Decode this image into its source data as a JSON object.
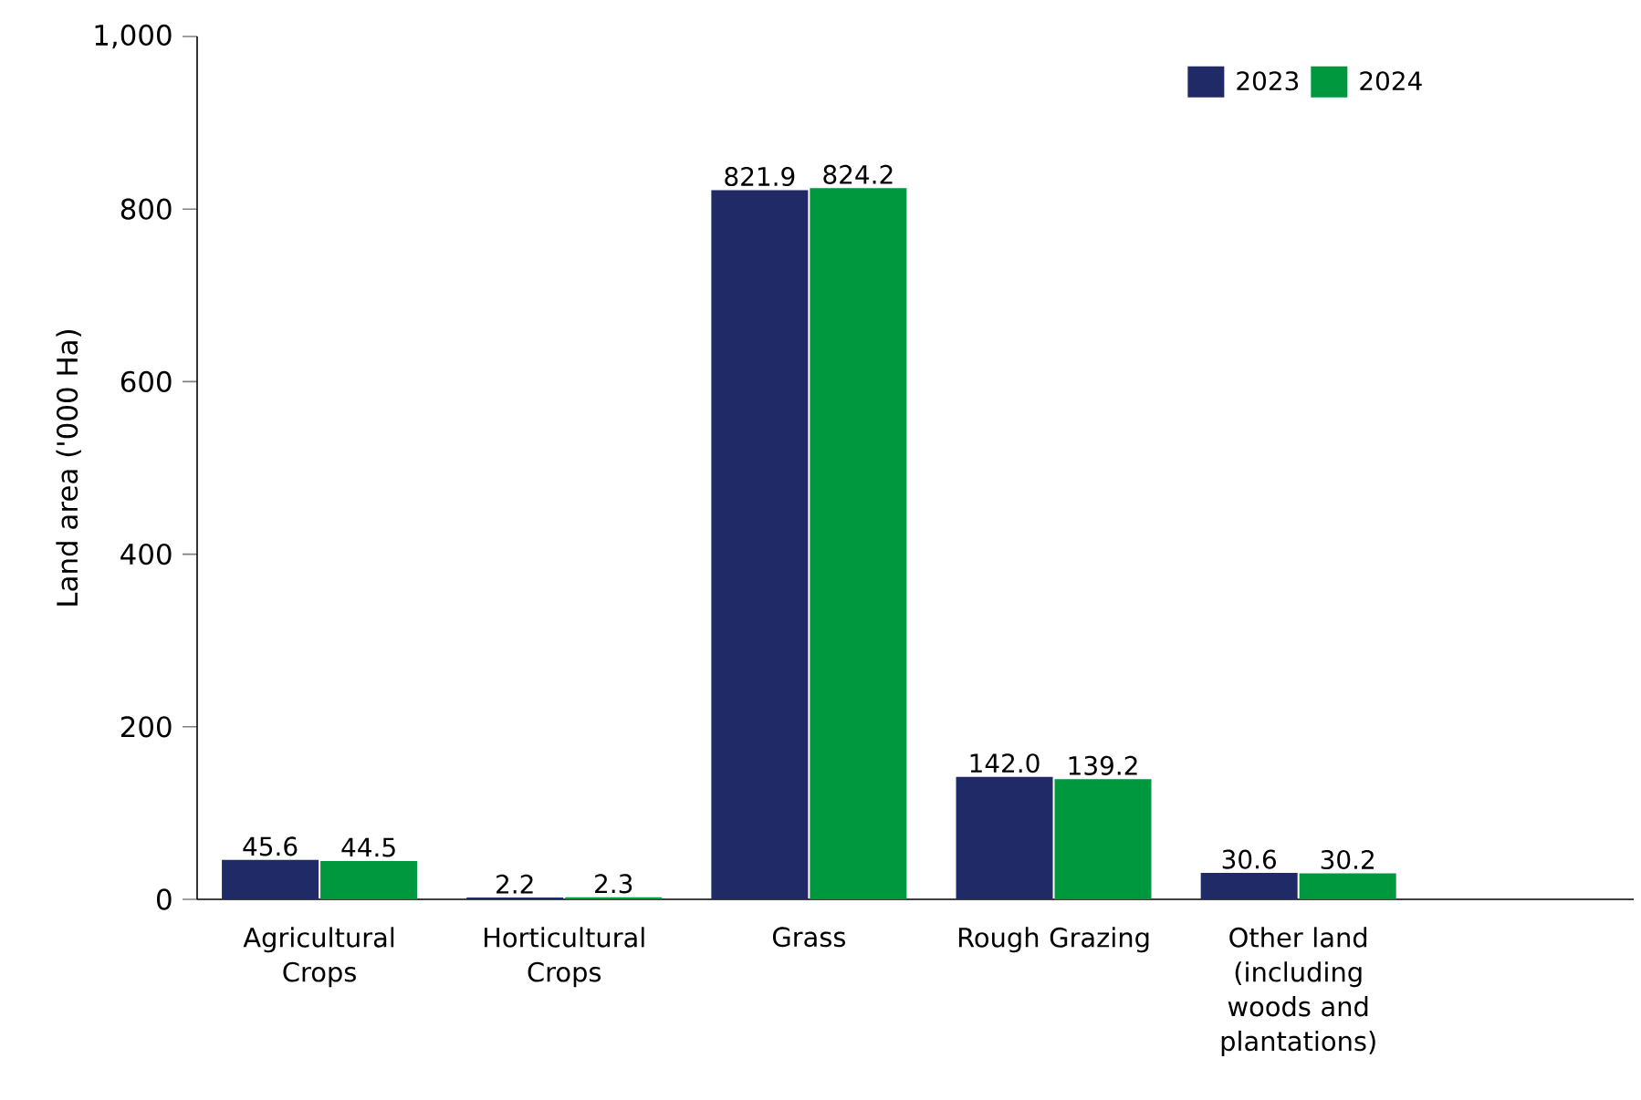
{
  "chart_data": {
    "type": "bar",
    "ylabel": "Land area ('000 Ha)",
    "categories": [
      "Agricultural Crops",
      "Horticultural Crops",
      "Grass",
      "Rough Grazing",
      "Other land (including woods and plantations)"
    ],
    "series": [
      {
        "name": "2023",
        "color": "#1f2a66",
        "values": [
          45.6,
          2.2,
          821.9,
          142.0,
          30.6
        ],
        "value_labels": [
          "45.6",
          "2.2",
          "821.9",
          "142.0",
          "30.6"
        ]
      },
      {
        "name": "2024",
        "color": "#00983f",
        "values": [
          44.5,
          2.3,
          824.2,
          139.2,
          30.2
        ],
        "value_labels": [
          "44.5",
          "2.3",
          "824.2",
          "139.2",
          "30.2"
        ]
      }
    ],
    "ylim": [
      0,
      1000
    ],
    "yticks": [
      0,
      200,
      400,
      600,
      800,
      {
        "value": 1000,
        "label": "1,000"
      }
    ],
    "grid": false,
    "legend": "top right"
  }
}
